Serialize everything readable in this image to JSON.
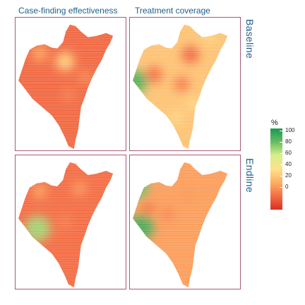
{
  "columns": [
    "Case-finding effectiveness",
    "Treatment coverage"
  ],
  "rows": [
    "Baseline",
    "Endline"
  ],
  "legend": {
    "title": "%",
    "ticks": [
      "100",
      "80",
      "60",
      "40",
      "20",
      "0"
    ],
    "range": [
      0,
      100
    ],
    "colors": [
      "#d73027",
      "#f46d43",
      "#fdae61",
      "#fee08b",
      "#d9ef8b",
      "#66bd63",
      "#1a9850"
    ]
  },
  "panels": [
    {
      "id": "baseline-case-finding",
      "base": 15,
      "hotspots": [
        {
          "u": 0.45,
          "v": 0.33,
          "value": 45
        },
        {
          "u": 0.22,
          "v": 0.27,
          "value": 32
        },
        {
          "u": 0.63,
          "v": 0.45,
          "value": 24
        },
        {
          "u": 0.48,
          "v": 0.58,
          "value": 22
        }
      ]
    },
    {
      "id": "baseline-treatment-coverage",
      "base": 40,
      "hotspots": [
        {
          "u": 0.06,
          "v": 0.48,
          "value": 88
        },
        {
          "u": 0.55,
          "v": 0.28,
          "value": 14
        },
        {
          "u": 0.22,
          "v": 0.43,
          "value": 16
        },
        {
          "u": 0.47,
          "v": 0.5,
          "value": 20
        },
        {
          "u": 0.58,
          "v": 0.65,
          "value": 48
        },
        {
          "u": 0.72,
          "v": 0.15,
          "value": 46
        },
        {
          "u": 0.42,
          "v": 0.75,
          "value": 48
        }
      ]
    },
    {
      "id": "endline-case-finding",
      "base": 16,
      "hotspots": [
        {
          "u": 0.2,
          "v": 0.55,
          "value": 74
        },
        {
          "u": 0.22,
          "v": 0.27,
          "value": 30
        },
        {
          "u": 0.58,
          "v": 0.25,
          "value": 28
        },
        {
          "u": 0.45,
          "v": 0.5,
          "value": 22
        }
      ]
    },
    {
      "id": "endline-treatment-coverage",
      "base": 29,
      "hotspots": [
        {
          "u": 0.06,
          "v": 0.24,
          "value": 82
        },
        {
          "u": 0.1,
          "v": 0.54,
          "value": 90
        },
        {
          "u": 0.16,
          "v": 0.4,
          "value": 18
        },
        {
          "u": 0.34,
          "v": 0.44,
          "value": 22
        },
        {
          "u": 0.52,
          "v": 0.3,
          "value": 26
        }
      ]
    }
  ]
}
